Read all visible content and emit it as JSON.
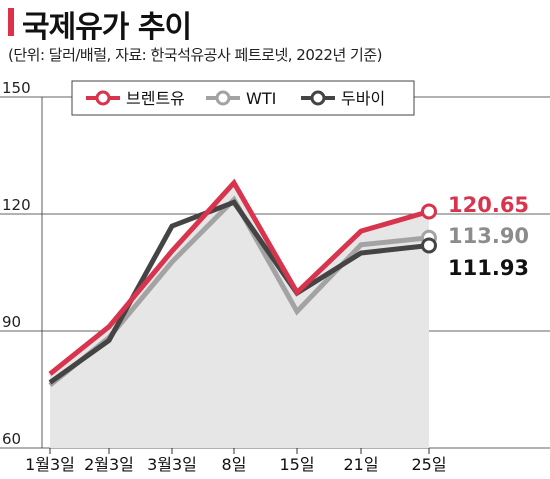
{
  "header": {
    "title": "국제유가 추이",
    "subtitle": "(단위: 달러/배럴, 자료: 한국석유공사 페트로넷, 2022년 기준)"
  },
  "colors": {
    "title_accent": "#e0314a",
    "area_fill": "#e6e6e6",
    "grid": "#333333"
  },
  "chart_data": {
    "type": "line",
    "title": "국제유가 추이",
    "subtitle": "(단위: 달러/배럴, 자료: 한국석유공사 페트로넷, 2022년 기준)",
    "categories": [
      "1월3일",
      "2월3일",
      "3월3일",
      "8일",
      "15일",
      "21일",
      "25일"
    ],
    "ylim": [
      60,
      150
    ],
    "yticks": [
      "150",
      "120",
      "90",
      "60"
    ],
    "ytick_values": [
      150,
      120,
      90,
      60
    ],
    "legend": "top",
    "grid": true,
    "series": [
      {
        "name": "브렌트유",
        "color": "#d9344d",
        "values": [
          78.98,
          91.1,
          110.5,
          127.98,
          99.9,
          115.6,
          120.65
        ],
        "end_label": "120.65"
      },
      {
        "name": "WTI",
        "color": "#a3a3a3",
        "values": [
          76.1,
          88.3,
          107.7,
          123.7,
          95.0,
          112.1,
          113.9
        ],
        "end_label": "113.90"
      },
      {
        "name": "두바이",
        "color": "#444444",
        "values": [
          76.8,
          87.6,
          116.9,
          123.0,
          99.7,
          110.0,
          111.93
        ],
        "end_label": "111.93"
      }
    ]
  }
}
